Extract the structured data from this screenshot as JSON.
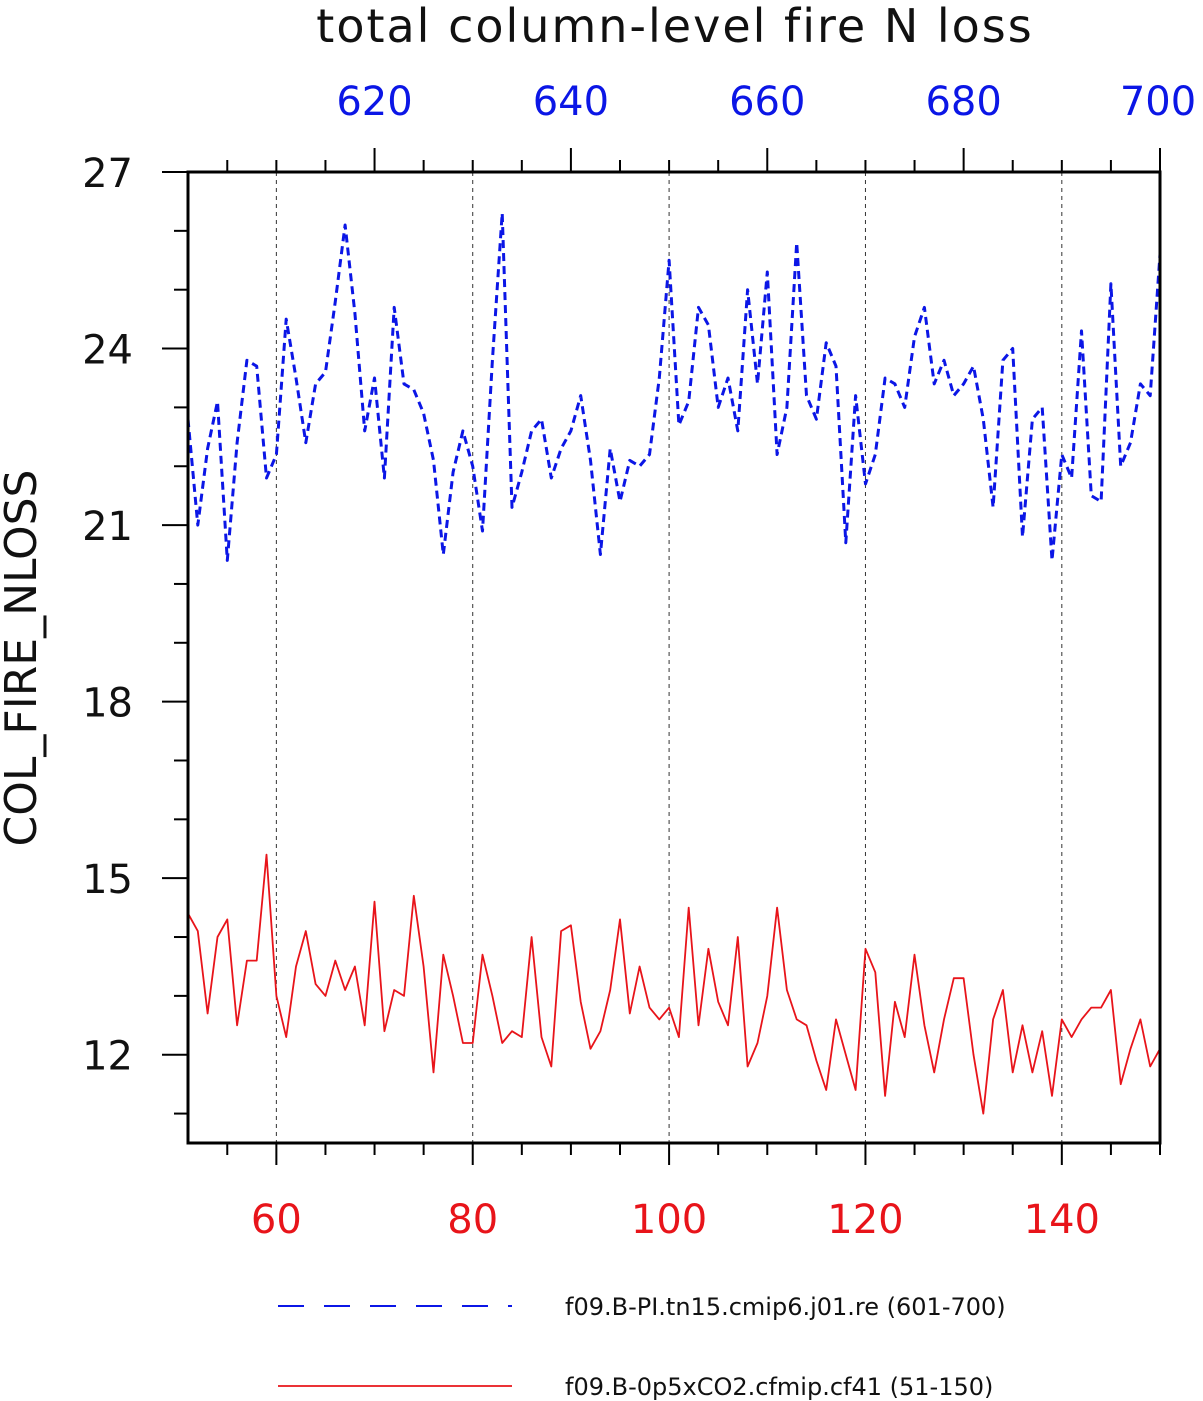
{
  "chart_data": {
    "type": "line",
    "title": "total column-level fire N loss",
    "ylabel": "COL_FIRE_NLOSS",
    "ylim": [
      10.5,
      27
    ],
    "yticks": [
      12,
      15,
      18,
      21,
      24,
      27
    ],
    "grid": "vertical-dashed",
    "x_bottom": {
      "range": [
        51,
        150
      ],
      "ticks": [
        60,
        80,
        100,
        120,
        140
      ],
      "color": "#e8141a"
    },
    "x_top": {
      "range": [
        601,
        700
      ],
      "ticks": [
        620,
        640,
        660,
        680,
        700
      ],
      "color": "#0b16e6"
    },
    "legend_position": "bottom",
    "series": [
      {
        "name": "f09.B-PI.tn15.cmip6.j01.re (601-700)",
        "axis": "top",
        "color": "#0b16e6",
        "style": "dashed",
        "x_start": 601,
        "values": [
          22.8,
          21.0,
          22.3,
          23.1,
          20.4,
          22.4,
          23.8,
          23.7,
          21.8,
          22.2,
          24.5,
          23.5,
          22.4,
          23.4,
          23.6,
          24.8,
          26.1,
          24.6,
          22.6,
          23.5,
          21.8,
          24.7,
          23.4,
          23.3,
          22.9,
          22.1,
          20.5,
          21.9,
          22.6,
          22.0,
          20.9,
          23.8,
          26.3,
          21.3,
          21.9,
          22.6,
          22.8,
          21.8,
          22.3,
          22.6,
          23.2,
          22.1,
          20.5,
          22.3,
          21.4,
          22.1,
          22.0,
          22.2,
          23.5,
          25.5,
          22.7,
          23.1,
          24.7,
          24.4,
          23.0,
          23.5,
          22.6,
          25.0,
          23.4,
          25.3,
          22.2,
          23.0,
          25.8,
          23.2,
          22.8,
          24.1,
          23.7,
          20.7,
          23.2,
          21.7,
          22.2,
          23.5,
          23.4,
          23.0,
          24.2,
          24.7,
          23.4,
          23.8,
          23.2,
          23.4,
          23.7,
          22.8,
          21.3,
          23.8,
          24.0,
          20.8,
          22.8,
          23.0,
          20.4,
          22.2,
          21.8,
          24.3,
          21.5,
          21.4,
          25.1,
          22.0,
          22.4,
          23.4,
          23.2,
          25.6
        ]
      },
      {
        "name": "f09.B-0p5xCO2.cfmip.cf41 (51-150)",
        "axis": "bottom",
        "color": "#e8141a",
        "style": "solid",
        "x_start": 51,
        "values": [
          14.4,
          14.1,
          12.7,
          14.0,
          14.3,
          12.5,
          13.6,
          13.6,
          15.4,
          13.0,
          12.3,
          13.5,
          14.1,
          13.2,
          13.0,
          13.6,
          13.1,
          13.5,
          12.5,
          14.6,
          12.4,
          13.1,
          13.0,
          14.7,
          13.5,
          11.7,
          13.7,
          13.0,
          12.2,
          12.2,
          13.7,
          13.0,
          12.2,
          12.4,
          12.3,
          14.0,
          12.3,
          11.8,
          14.1,
          14.2,
          12.9,
          12.1,
          12.4,
          13.1,
          14.3,
          12.7,
          13.5,
          12.8,
          12.6,
          12.8,
          12.3,
          14.5,
          12.5,
          13.8,
          12.9,
          12.5,
          14.0,
          11.8,
          12.2,
          13.0,
          14.5,
          13.1,
          12.6,
          12.5,
          11.9,
          11.4,
          12.6,
          12.0,
          11.4,
          13.8,
          13.4,
          11.3,
          12.9,
          12.3,
          13.7,
          12.5,
          11.7,
          12.6,
          13.3,
          13.3,
          12.0,
          11.0,
          12.6,
          13.1,
          11.7,
          12.5,
          11.7,
          12.4,
          11.3,
          12.6,
          12.3,
          12.6,
          12.8,
          12.8,
          13.1,
          11.5,
          12.1,
          12.6,
          11.8,
          12.1
        ]
      }
    ]
  }
}
